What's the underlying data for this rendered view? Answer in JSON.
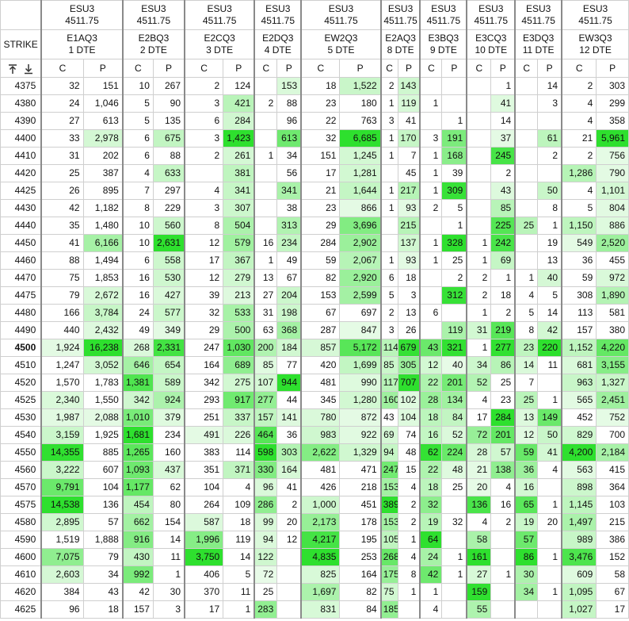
{
  "strike_header": "STRIKE",
  "toolbar_icons": [
    "pin-to-top-icon",
    "scroll-to-bottom-icon"
  ],
  "heat_colors": {
    "low": "#e8fbe8",
    "high": "#2ee02e"
  },
  "columns": [
    {
      "symbol": "ESU3",
      "price": "4511.75",
      "contract": "E1AQ3",
      "dte": "1 DTE",
      "call_label": "C",
      "put_label": "P"
    },
    {
      "symbol": "ESU3",
      "price": "4511.75",
      "contract": "E2BQ3",
      "dte": "2 DTE",
      "call_label": "C",
      "put_label": "P"
    },
    {
      "symbol": "ESU3",
      "price": "4511.75",
      "contract": "E2CQ3",
      "dte": "3 DTE",
      "call_label": "C",
      "put_label": "P"
    },
    {
      "symbol": "ESU3",
      "price": "4511.75",
      "contract": "E2DQ3",
      "dte": "4 DTE",
      "call_label": "C",
      "put_label": "P"
    },
    {
      "symbol": "ESU3",
      "price": "4511.75",
      "contract": "EW2Q3",
      "dte": "5 DTE",
      "call_label": "C",
      "put_label": "P"
    },
    {
      "symbol": "ESU3",
      "price": "4511.75",
      "contract": "E2AQ3",
      "dte": "8 DTE",
      "call_label": "C",
      "put_label": "P"
    },
    {
      "symbol": "ESU3",
      "price": "4511.75",
      "contract": "E3BQ3",
      "dte": "9 DTE",
      "call_label": "C",
      "put_label": "P"
    },
    {
      "symbol": "ESU3",
      "price": "4511.75",
      "contract": "E3CQ3",
      "dte": "10 DTE",
      "call_label": "C",
      "put_label": "P"
    },
    {
      "symbol": "ESU3",
      "price": "4511.75",
      "contract": "E3DQ3",
      "dte": "11 DTE",
      "call_label": "C",
      "put_label": "P"
    },
    {
      "symbol": "ESU3",
      "price": "4511.75",
      "contract": "EW3Q3",
      "dte": "12 DTE",
      "call_label": "C",
      "put_label": "P"
    }
  ],
  "atm_strike": "4500",
  "rows": [
    {
      "strike": "4375",
      "cells": [
        "32",
        "151",
        "10",
        "267",
        "2",
        "124",
        "",
        "153",
        "18",
        "1,522",
        "2",
        "143",
        "",
        "",
        "",
        "1",
        "",
        "14",
        "2",
        "303"
      ]
    },
    {
      "strike": "4380",
      "cells": [
        "24",
        "1,046",
        "5",
        "90",
        "3",
        "421",
        "2",
        "88",
        "23",
        "180",
        "1",
        "119",
        "1",
        "",
        "",
        "41",
        "",
        "3",
        "4",
        "299"
      ]
    },
    {
      "strike": "4390",
      "cells": [
        "27",
        "613",
        "5",
        "135",
        "6",
        "284",
        "",
        "96",
        "22",
        "763",
        "3",
        "41",
        "",
        "1",
        "",
        "14",
        "",
        "",
        "4",
        "358"
      ]
    },
    {
      "strike": "4400",
      "cells": [
        "33",
        "2,978",
        "6",
        "675",
        "3",
        "1,423",
        "",
        "613",
        "32",
        "6,685",
        "1",
        "170",
        "3",
        "191",
        "",
        "37",
        "",
        "61",
        "21",
        "5,961"
      ]
    },
    {
      "strike": "4410",
      "cells": [
        "31",
        "202",
        "6",
        "88",
        "2",
        "261",
        "1",
        "34",
        "151",
        "1,245",
        "1",
        "7",
        "1",
        "168",
        "",
        "245",
        "",
        "2",
        "2",
        "756"
      ]
    },
    {
      "strike": "4420",
      "cells": [
        "25",
        "387",
        "4",
        "633",
        "",
        "381",
        "",
        "56",
        "17",
        "1,281",
        "",
        "45",
        "1",
        "39",
        "",
        "2",
        "",
        "",
        "1,286",
        "790"
      ]
    },
    {
      "strike": "4425",
      "cells": [
        "26",
        "895",
        "7",
        "297",
        "4",
        "341",
        "",
        "341",
        "21",
        "1,644",
        "1",
        "217",
        "1",
        "309",
        "",
        "43",
        "",
        "50",
        "4",
        "1,101"
      ]
    },
    {
      "strike": "4430",
      "cells": [
        "42",
        "1,182",
        "8",
        "229",
        "3",
        "307",
        "",
        "38",
        "23",
        "866",
        "1",
        "93",
        "2",
        "5",
        "",
        "85",
        "",
        "8",
        "5",
        "804"
      ]
    },
    {
      "strike": "4440",
      "cells": [
        "35",
        "1,480",
        "10",
        "560",
        "8",
        "504",
        "",
        "313",
        "29",
        "3,696",
        "",
        "215",
        "",
        "1",
        "",
        "225",
        "25",
        "1",
        "1,150",
        "886"
      ]
    },
    {
      "strike": "4450",
      "cells": [
        "41",
        "6,166",
        "10",
        "2,631",
        "12",
        "579",
        "16",
        "234",
        "284",
        "2,902",
        "",
        "137",
        "1",
        "328",
        "1",
        "242",
        "",
        "19",
        "549",
        "2,520"
      ]
    },
    {
      "strike": "4460",
      "cells": [
        "88",
        "1,494",
        "6",
        "558",
        "17",
        "367",
        "1",
        "49",
        "59",
        "2,067",
        "1",
        "93",
        "1",
        "25",
        "1",
        "69",
        "",
        "13",
        "36",
        "455"
      ]
    },
    {
      "strike": "4470",
      "cells": [
        "75",
        "1,853",
        "16",
        "530",
        "12",
        "279",
        "13",
        "67",
        "82",
        "2,920",
        "6",
        "18",
        "",
        "2",
        "2",
        "1",
        "1",
        "40",
        "59",
        "972"
      ]
    },
    {
      "strike": "4475",
      "cells": [
        "79",
        "2,672",
        "16",
        "427",
        "39",
        "213",
        "27",
        "204",
        "153",
        "2,599",
        "5",
        "3",
        "",
        "312",
        "2",
        "18",
        "4",
        "5",
        "308",
        "1,890"
      ]
    },
    {
      "strike": "4480",
      "cells": [
        "166",
        "3,784",
        "24",
        "577",
        "32",
        "533",
        "31",
        "198",
        "67",
        "697",
        "2",
        "13",
        "6",
        "",
        "1",
        "2",
        "5",
        "14",
        "113",
        "581"
      ]
    },
    {
      "strike": "4490",
      "cells": [
        "440",
        "2,432",
        "49",
        "349",
        "29",
        "500",
        "63",
        "368",
        "287",
        "847",
        "3",
        "26",
        "",
        "119",
        "31",
        "219",
        "8",
        "42",
        "157",
        "380"
      ]
    },
    {
      "strike": "4500",
      "cells": [
        "1,924",
        "16,238",
        "268",
        "2,331",
        "247",
        "1,030",
        "200",
        "184",
        "857",
        "5,172",
        "114",
        "679",
        "43",
        "321",
        "1",
        "277",
        "23",
        "220",
        "1,152",
        "4,220"
      ]
    },
    {
      "strike": "4510",
      "cells": [
        "1,247",
        "3,052",
        "646",
        "654",
        "164",
        "689",
        "85",
        "77",
        "420",
        "1,699",
        "85",
        "305",
        "12",
        "40",
        "34",
        "86",
        "14",
        "11",
        "681",
        "3,155"
      ]
    },
    {
      "strike": "4520",
      "cells": [
        "1,570",
        "1,783",
        "1,381",
        "589",
        "342",
        "275",
        "107",
        "944",
        "481",
        "990",
        "117",
        "707",
        "22",
        "201",
        "52",
        "25",
        "7",
        "",
        "963",
        "1,327"
      ]
    },
    {
      "strike": "4525",
      "cells": [
        "2,340",
        "1,550",
        "342",
        "924",
        "293",
        "917",
        "277",
        "44",
        "345",
        "1,280",
        "160",
        "102",
        "28",
        "134",
        "4",
        "23",
        "25",
        "1",
        "565",
        "2,451"
      ]
    },
    {
      "strike": "4530",
      "cells": [
        "1,987",
        "2,088",
        "1,010",
        "379",
        "251",
        "337",
        "157",
        "141",
        "780",
        "872",
        "43",
        "104",
        "18",
        "84",
        "17",
        "284",
        "13",
        "149",
        "452",
        "752"
      ]
    },
    {
      "strike": "4540",
      "cells": [
        "3,159",
        "1,925",
        "1,681",
        "234",
        "491",
        "226",
        "464",
        "36",
        "983",
        "922",
        "69",
        "74",
        "16",
        "52",
        "72",
        "201",
        "12",
        "50",
        "829",
        "700"
      ]
    },
    {
      "strike": "4550",
      "cells": [
        "14,355",
        "885",
        "1,265",
        "160",
        "383",
        "114",
        "598",
        "303",
        "2,622",
        "1,329",
        "94",
        "48",
        "62",
        "224",
        "28",
        "57",
        "59",
        "41",
        "4,200",
        "2,184"
      ]
    },
    {
      "strike": "4560",
      "cells": [
        "3,222",
        "607",
        "1,093",
        "437",
        "351",
        "371",
        "330",
        "164",
        "481",
        "471",
        "247",
        "15",
        "22",
        "48",
        "21",
        "138",
        "36",
        "4",
        "563",
        "415"
      ]
    },
    {
      "strike": "4570",
      "cells": [
        "9,791",
        "104",
        "1,177",
        "62",
        "104",
        "4",
        "96",
        "41",
        "426",
        "218",
        "153",
        "4",
        "18",
        "25",
        "20",
        "4",
        "16",
        "",
        "898",
        "364"
      ]
    },
    {
      "strike": "4575",
      "cells": [
        "14,538",
        "136",
        "454",
        "80",
        "264",
        "109",
        "286",
        "2",
        "1,000",
        "451",
        "389",
        "2",
        "32",
        "",
        "136",
        "16",
        "65",
        "1",
        "1,145",
        "103"
      ]
    },
    {
      "strike": "4580",
      "cells": [
        "2,895",
        "57",
        "662",
        "154",
        "587",
        "18",
        "99",
        "20",
        "2,173",
        "178",
        "153",
        "2",
        "19",
        "32",
        "4",
        "2",
        "19",
        "20",
        "1,497",
        "215"
      ]
    },
    {
      "strike": "4590",
      "cells": [
        "1,519",
        "1,888",
        "916",
        "14",
        "1,996",
        "119",
        "94",
        "12",
        "4,217",
        "195",
        "105",
        "1",
        "64",
        "",
        "58",
        "",
        "57",
        "",
        "989",
        "386"
      ]
    },
    {
      "strike": "4600",
      "cells": [
        "7,075",
        "79",
        "430",
        "11",
        "3,750",
        "14",
        "122",
        "",
        "4,835",
        "253",
        "268",
        "4",
        "24",
        "1",
        "161",
        "",
        "86",
        "1",
        "3,476",
        "152"
      ]
    },
    {
      "strike": "4610",
      "cells": [
        "2,603",
        "34",
        "992",
        "1",
        "406",
        "5",
        "72",
        "",
        "825",
        "164",
        "175",
        "8",
        "42",
        "1",
        "27",
        "1",
        "30",
        "",
        "609",
        "58"
      ]
    },
    {
      "strike": "4620",
      "cells": [
        "384",
        "43",
        "42",
        "30",
        "370",
        "11",
        "25",
        "",
        "1,697",
        "82",
        "75",
        "1",
        "1",
        "",
        "159",
        "",
        "34",
        "1",
        "1,095",
        "67"
      ]
    },
    {
      "strike": "4625",
      "cells": [
        "96",
        "18",
        "157",
        "3",
        "17",
        "1",
        "283",
        "",
        "831",
        "84",
        "185",
        "",
        "4",
        "",
        "55",
        "",
        "",
        "",
        "1,027",
        "17"
      ]
    }
  ]
}
